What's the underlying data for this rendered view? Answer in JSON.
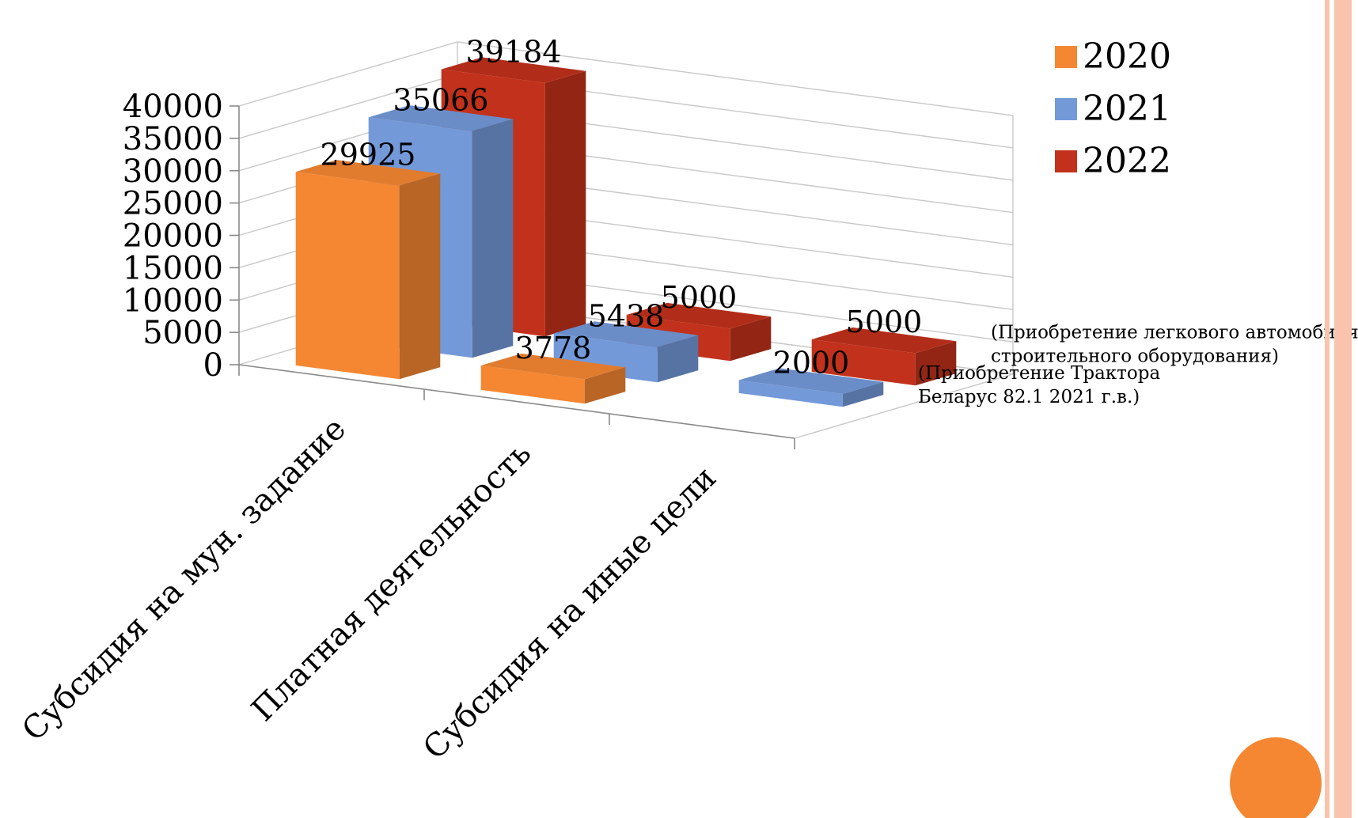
{
  "chart_data": {
    "type": "bar",
    "categories": [
      "Субсидия на мун. задание",
      "Платная деятельность",
      "Субсидия на иные цели"
    ],
    "series": [
      {
        "name": "2020",
        "values": [
          29925,
          3778,
          null
        ]
      },
      {
        "name": "2021",
        "values": [
          35066,
          5438,
          2000
        ]
      },
      {
        "name": "2022",
        "values": [
          39184,
          5000,
          5000
        ]
      }
    ],
    "value_labels": {
      "2020": [
        "29925",
        "3778",
        ""
      ],
      "2021": [
        "35066",
        "5438",
        "2000"
      ],
      "2022": [
        "39184",
        "5000",
        "5000"
      ]
    },
    "ylim": [
      0,
      40000
    ],
    "y_ticks": [
      "0",
      "5000",
      "10000",
      "15000",
      "20000",
      "25000",
      "30000",
      "35000",
      "40000"
    ],
    "grid": true,
    "legend_position": "top-right",
    "three_d": true,
    "annotations": [
      {
        "series": "2022",
        "category": "Субсидия на иные цели",
        "lines": [
          "(Приобретение легкового автомобиля,",
          "строительного оборудования)"
        ]
      },
      {
        "series": "2021",
        "category": "Субсидия на иные цели",
        "lines": [
          "(Приобретение Трактора",
          "Беларус 82.1 2021 г.в.)"
        ]
      }
    ]
  },
  "colors": {
    "2020": "#f58733",
    "2021": "#7399d9",
    "2022": "#c2311b",
    "accent_bar": "#f9c3ad",
    "accent_circle": "#f58733"
  }
}
